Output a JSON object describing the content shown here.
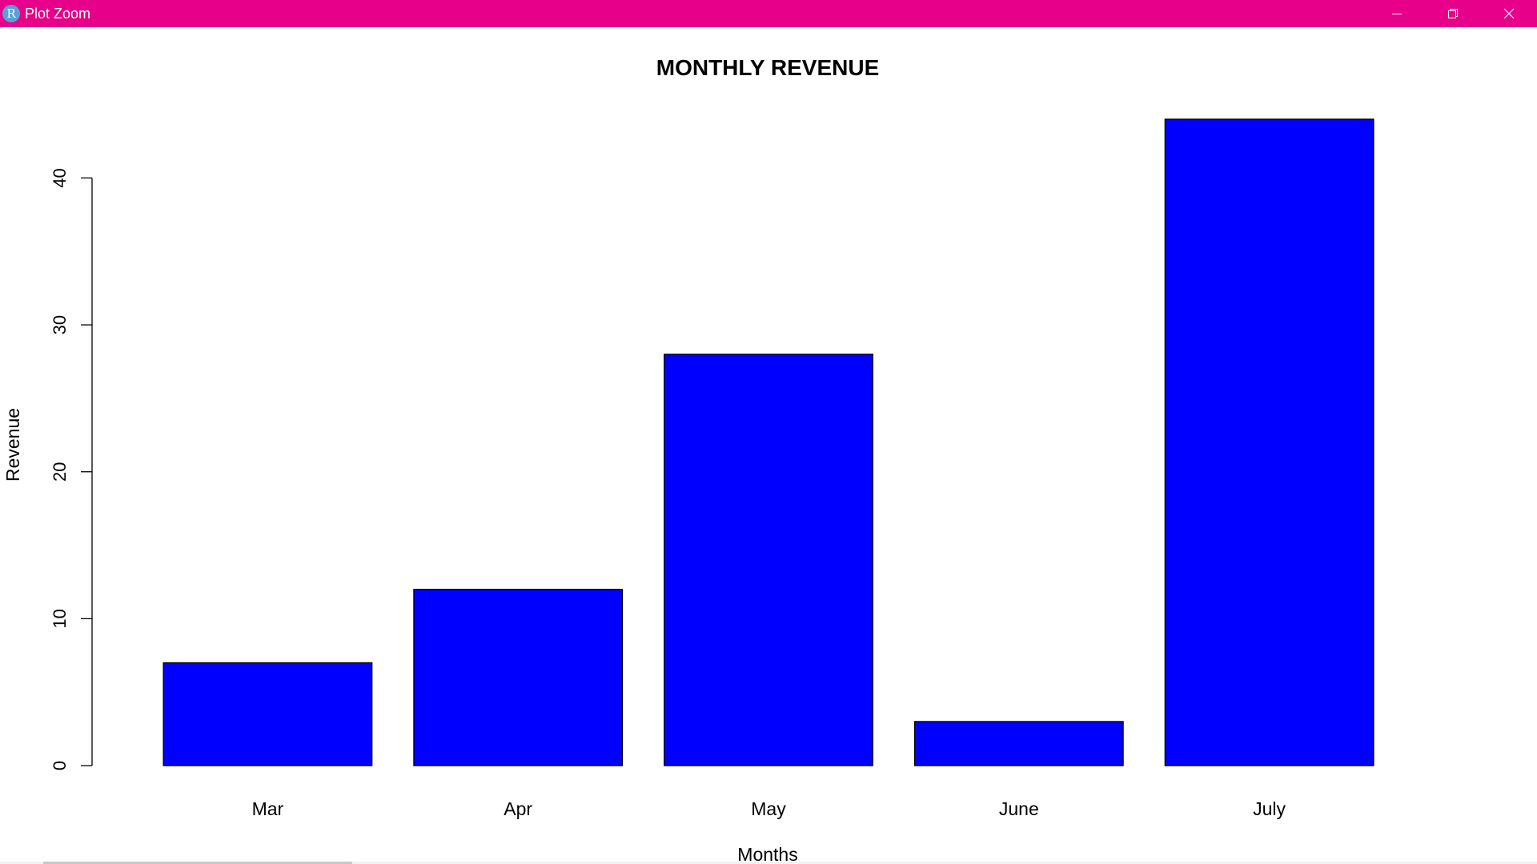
{
  "window": {
    "icon_letter": "R",
    "title": "Plot Zoom",
    "accent_color": "#e6008a",
    "controls": [
      "minimize-icon",
      "restore-icon",
      "close-icon"
    ]
  },
  "chart_data": {
    "type": "bar",
    "title": "MONTHLY REVENUE",
    "xlabel": "Months",
    "ylabel": "Revenue",
    "categories": [
      "Mar",
      "Apr",
      "May",
      "June",
      "July"
    ],
    "values": [
      7,
      12,
      28,
      3,
      44
    ],
    "ylim": [
      0,
      44
    ],
    "yticks": [
      0,
      10,
      20,
      30,
      40
    ],
    "bar_color": "#0000ff",
    "bar_border_color": "#000000",
    "grid": false,
    "legend": "none"
  }
}
